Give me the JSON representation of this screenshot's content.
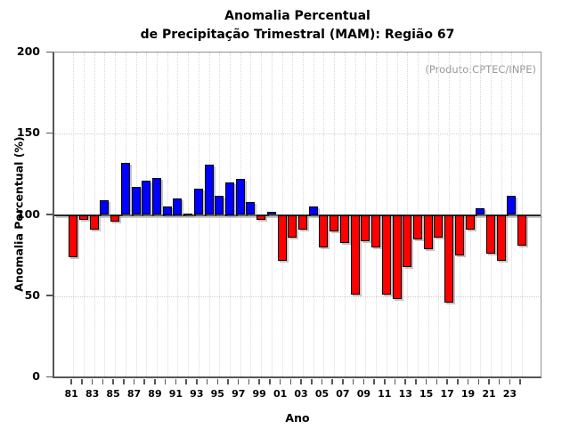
{
  "title": {
    "line1": "Anomalia Percentual",
    "line2": "de Precipitação Trimestral (MAM): Região 67"
  },
  "colors": {
    "positive_bar": "#0000ff",
    "negative_bar": "#ff0000",
    "annotation_text": "#9a9a9a",
    "grid": "#d9d9d9"
  },
  "chart_data": {
    "type": "bar",
    "title": "Anomalia Percentual de Precipitação Trimestral (MAM): Região 67",
    "annotation": "(Produto:CPTEC/INPE)",
    "xlabel": "Ano",
    "ylabel": "Anomalia Percentual (%)",
    "ylim": [
      0,
      200
    ],
    "yticks": [
      0,
      50,
      100,
      150,
      200
    ],
    "baseline": 100,
    "grid_horizontal": [
      50,
      150
    ],
    "grid_vertical": "every-year-dotted",
    "legend_position": "none",
    "bar_color_rule": "blue >= 100, red < 100",
    "categories": [
      "81",
      "82",
      "83",
      "84",
      "85",
      "86",
      "87",
      "88",
      "89",
      "90",
      "91",
      "92",
      "93",
      "94",
      "95",
      "96",
      "97",
      "98",
      "99",
      "00",
      "01",
      "02",
      "03",
      "04",
      "05",
      "06",
      "07",
      "08",
      "09",
      "10",
      "11",
      "12",
      "13",
      "14",
      "15",
      "16",
      "17",
      "18",
      "19",
      "20",
      "21",
      "22",
      "23",
      "24"
    ],
    "xtick_labeled": [
      "81",
      "83",
      "85",
      "87",
      "89",
      "91",
      "93",
      "95",
      "97",
      "99",
      "01",
      "03",
      "05",
      "07",
      "09",
      "11",
      "13",
      "15",
      "17",
      "19",
      "21",
      "23"
    ],
    "values": [
      74,
      97,
      91,
      109,
      96,
      132,
      117,
      121,
      123,
      105,
      110,
      101,
      116,
      131,
      112,
      120,
      122,
      108,
      97,
      102,
      72,
      86,
      91,
      105,
      80,
      90,
      83,
      51,
      84,
      80,
      51,
      48,
      68,
      85,
      79,
      86,
      46,
      75,
      91,
      104,
      76,
      72,
      112,
      81
    ]
  }
}
